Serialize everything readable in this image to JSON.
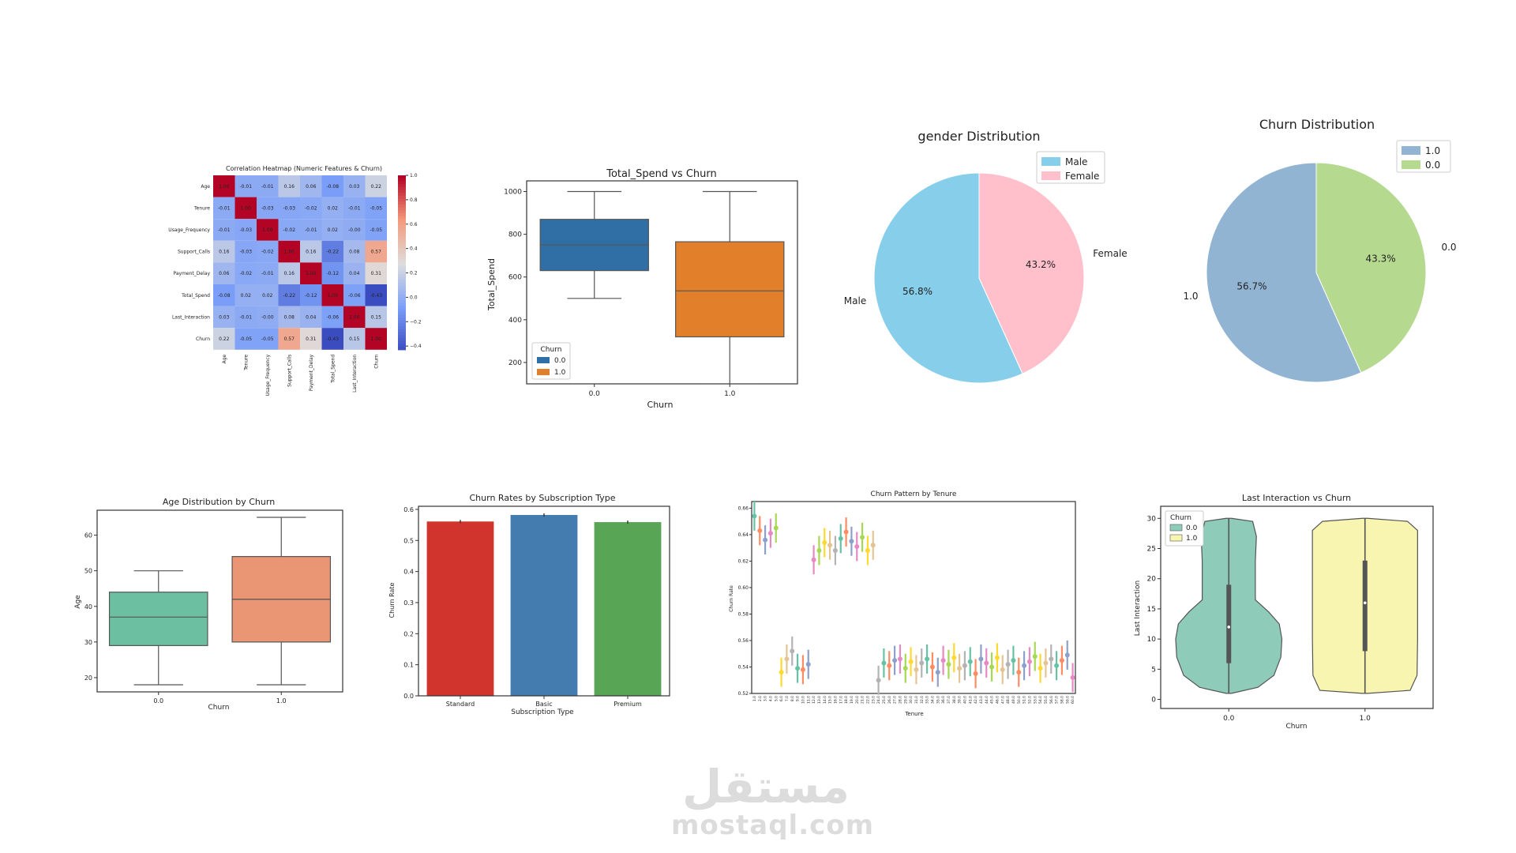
{
  "chart_data": [
    {
      "id": "heatmap",
      "type": "heatmap",
      "title": "Correlation Heatmap (Numeric Features & Churn)",
      "rows": [
        "Age",
        "Tenure",
        "Usage_Frequency",
        "Support_Calls",
        "Payment_Delay",
        "Total_Spend",
        "Last_Interaction",
        "Churn"
      ],
      "cols": [
        "Age",
        "Tenure",
        "Usage_Frequency",
        "Support_Calls",
        "Payment_Delay",
        "Total_Spend",
        "Last_Interaction",
        "Churn"
      ],
      "values": [
        [
          1.0,
          -0.01,
          -0.01,
          0.16,
          0.06,
          -0.08,
          0.03,
          0.22
        ],
        [
          -0.01,
          1.0,
          -0.03,
          -0.03,
          -0.02,
          0.02,
          -0.01,
          -0.05
        ],
        [
          -0.01,
          -0.03,
          1.0,
          -0.02,
          -0.01,
          0.02,
          -0.0,
          -0.05
        ],
        [
          0.16,
          -0.03,
          -0.02,
          1.0,
          0.16,
          -0.22,
          0.08,
          0.57
        ],
        [
          0.06,
          -0.02,
          -0.01,
          0.16,
          1.0,
          -0.12,
          0.04,
          0.31
        ],
        [
          -0.08,
          0.02,
          0.02,
          -0.22,
          -0.12,
          1.0,
          -0.06,
          -0.43
        ],
        [
          0.03,
          -0.01,
          -0.0,
          0.08,
          0.04,
          -0.06,
          1.0,
          0.15
        ],
        [
          0.22,
          -0.05,
          -0.05,
          0.57,
          0.31,
          -0.43,
          0.15,
          1.0
        ]
      ],
      "colorbar_ticks": [
        1.0,
        0.8,
        0.6,
        0.4,
        0.2,
        0.0,
        -0.2,
        -0.4
      ],
      "colorbar_tick_labels": [
        "1.0",
        "0.8",
        "0.6",
        "0.4",
        "0.2",
        "0.0",
        "−0.2",
        "−0.4"
      ],
      "vmin": -0.43,
      "vmax": 1.0
    },
    {
      "id": "spend_box",
      "type": "box",
      "title": "Total_Spend vs Churn",
      "xlabel": "Churn",
      "ylabel": "Total_Spend",
      "categories": [
        "0.0",
        "1.0"
      ],
      "boxes": [
        {
          "whisker_low": 500,
          "q1": 630,
          "median": 750,
          "q3": 870,
          "whisker_high": 1000,
          "color": "#2f6fa5"
        },
        {
          "whisker_low": 100,
          "q1": 320,
          "median": 535,
          "q3": 765,
          "whisker_high": 1000,
          "color": "#e17f2a"
        }
      ],
      "ylim": [
        100,
        1050
      ],
      "yticks": [
        200,
        400,
        600,
        800,
        1000
      ],
      "legend": {
        "title": "Churn",
        "entries": [
          {
            "label": "0.0",
            "color": "#2f6fa5"
          },
          {
            "label": "1.0",
            "color": "#e17f2a"
          }
        ]
      }
    },
    {
      "id": "gender_pie",
      "type": "pie",
      "title": "gender Distribution",
      "slices": [
        {
          "label": "Male",
          "value": 56.8,
          "pct": "56.8%",
          "color": "#87ceeb"
        },
        {
          "label": "Female",
          "value": 43.2,
          "pct": "43.2%",
          "color": "#ffc0cb"
        }
      ],
      "legend": [
        "Male",
        "Female"
      ]
    },
    {
      "id": "churn_pie",
      "type": "pie",
      "title": "Churn Distribution",
      "slices": [
        {
          "label": "1.0",
          "value": 56.7,
          "pct": "56.7%",
          "color": "#92b4d3"
        },
        {
          "label": "0.0",
          "value": 43.3,
          "pct": "43.3%",
          "color": "#b5d98e"
        }
      ],
      "legend": [
        "1.0",
        "0.0"
      ]
    },
    {
      "id": "age_box",
      "type": "box",
      "title": "Age Distribution by Churn",
      "xlabel": "Churn",
      "ylabel": "Age",
      "categories": [
        "0.0",
        "1.0"
      ],
      "boxes": [
        {
          "whisker_low": 18,
          "q1": 29,
          "median": 37,
          "q3": 44,
          "whisker_high": 50,
          "color": "#6cbfa0"
        },
        {
          "whisker_low": 18,
          "q1": 30,
          "median": 42,
          "q3": 54,
          "whisker_high": 65,
          "color": "#ea9573"
        }
      ],
      "ylim": [
        16,
        67
      ],
      "yticks": [
        20,
        30,
        40,
        50,
        60
      ]
    },
    {
      "id": "sub_bar",
      "type": "bar",
      "title": "Churn Rates by Subscription Type",
      "xlabel": "Subscription Type",
      "ylabel": "Churn Rate",
      "categories": [
        "Standard",
        "Basic",
        "Premium"
      ],
      "values": [
        0.561,
        0.582,
        0.559
      ],
      "colors": [
        "#d0342c",
        "#447caf",
        "#58a555"
      ],
      "ylim": [
        0,
        0.61
      ],
      "yticks": [
        0.0,
        0.1,
        0.2,
        0.3,
        0.4,
        0.5,
        0.6
      ],
      "ytick_labels": [
        "0.0",
        "0.1",
        "0.2",
        "0.3",
        "0.4",
        "0.5",
        "0.6"
      ]
    },
    {
      "id": "tenure_point",
      "type": "scatter",
      "title": "Churn Pattern by Tenure",
      "xlabel": "Tenure",
      "ylabel": "Churn Rate",
      "x": [
        "1.0",
        "2.0",
        "3.0",
        "4.0",
        "5.0",
        "6.0",
        "7.0",
        "8.0",
        "9.0",
        "10.0",
        "11.0",
        "12.0",
        "13.0",
        "14.0",
        "15.0",
        "16.0",
        "17.0",
        "18.0",
        "19.0",
        "20.0",
        "21.0",
        "22.0",
        "23.0",
        "24.0",
        "25.0",
        "26.0",
        "27.0",
        "28.0",
        "29.0",
        "30.0",
        "31.0",
        "32.0",
        "33.0",
        "34.0",
        "35.0",
        "36.0",
        "37.0",
        "38.0",
        "39.0",
        "40.0",
        "41.0",
        "42.0",
        "43.0",
        "44.0",
        "45.0",
        "46.0",
        "47.0",
        "48.0",
        "49.0",
        "50.0",
        "51.0",
        "52.0",
        "53.0",
        "54.0",
        "55.0",
        "56.0",
        "57.0",
        "58.0",
        "59.0",
        "60.0"
      ],
      "y": [
        0.654,
        0.643,
        0.636,
        0.641,
        0.645,
        0.536,
        0.546,
        0.552,
        0.539,
        0.538,
        0.542,
        0.621,
        0.628,
        0.634,
        0.632,
        0.628,
        0.637,
        0.642,
        0.635,
        0.631,
        0.638,
        0.628,
        0.632,
        0.53,
        0.543,
        0.541,
        0.545,
        0.546,
        0.539,
        0.544,
        0.538,
        0.543,
        0.546,
        0.54,
        0.536,
        0.545,
        0.542,
        0.547,
        0.539,
        0.541,
        0.544,
        0.535,
        0.546,
        0.543,
        0.54,
        0.547,
        0.538,
        0.542,
        0.545,
        0.536,
        0.541,
        0.544,
        0.548,
        0.539,
        0.543,
        0.546,
        0.541,
        0.545,
        0.549,
        0.532
      ],
      "ylim": [
        0.52,
        0.665
      ],
      "yticks": [
        0.52,
        0.54,
        0.56,
        0.58,
        0.6,
        0.62,
        0.64,
        0.66
      ],
      "ytick_labels": [
        "0.52",
        "0.54",
        "0.56",
        "0.58",
        "0.60",
        "0.62",
        "0.64",
        "0.66"
      ],
      "palette": [
        "#66c2a5",
        "#fc8d62",
        "#8da0cb",
        "#e78ac3",
        "#a6d854",
        "#ffd92f",
        "#e5c494",
        "#b3b3b3"
      ]
    },
    {
      "id": "interaction_violin",
      "type": "violin",
      "title": "Last Interaction vs Churn",
      "xlabel": "Churn",
      "ylabel": "Last Interaction",
      "categories": [
        "0.0",
        "1.0"
      ],
      "violins": [
        {
          "min": 1,
          "q1": 6,
          "median": 12,
          "q3": 19,
          "max": 30,
          "color": "#8ecbb9"
        },
        {
          "min": 1,
          "q1": 8,
          "median": 16,
          "q3": 23,
          "max": 30,
          "color": "#f7f5b0"
        }
      ],
      "ylim": [
        -1.5,
        32
      ],
      "yticks": [
        0,
        5,
        10,
        15,
        20,
        25,
        30
      ],
      "legend": {
        "title": "Churn",
        "entries": [
          {
            "label": "0.0",
            "color": "#8ecbb9"
          },
          {
            "label": "1.0",
            "color": "#f7f5b0"
          }
        ]
      }
    }
  ],
  "watermark": {
    "arabic": "مستقل",
    "latin": "mostaql.com"
  }
}
